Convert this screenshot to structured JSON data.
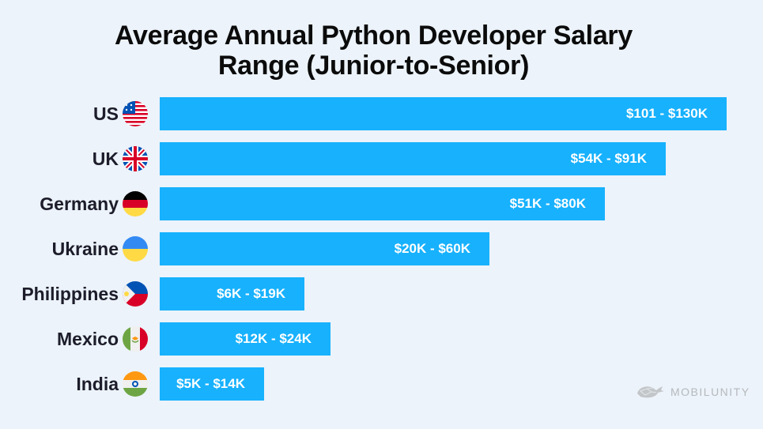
{
  "chart_data": {
    "type": "bar",
    "orientation": "horizontal",
    "title": "Average Annual Python Developer Salary Range (Junior-to-Senior)",
    "title_lines": [
      "Average Annual Python Developer Salary",
      "Range (Junior-to-Senior)"
    ],
    "categories": [
      "US",
      "UK",
      "Germany",
      "Ukraine",
      "Philippines",
      "Mexico",
      "India"
    ],
    "flags": [
      "us-flag-icon",
      "uk-flag-icon",
      "germany-flag-icon",
      "ukraine-flag-icon",
      "philippines-flag-icon",
      "mexico-flag-icon",
      "india-flag-icon"
    ],
    "ranges": [
      {
        "min": 101,
        "max": 130,
        "unit": "K USD"
      },
      {
        "min": 54,
        "max": 91,
        "unit": "K USD"
      },
      {
        "min": 51,
        "max": 80,
        "unit": "K USD"
      },
      {
        "min": 20,
        "max": 60,
        "unit": "K USD"
      },
      {
        "min": 6,
        "max": 19,
        "unit": "K USD"
      },
      {
        "min": 12,
        "max": 24,
        "unit": "K USD"
      },
      {
        "min": 5,
        "max": 14,
        "unit": "K USD"
      }
    ],
    "data_labels": [
      "$101 - $130K",
      "$54K - $91K",
      "$51K - $80K",
      "$20K - $60K",
      "$6K - $19K",
      "$12K - $24K",
      "$5K - $14K"
    ],
    "bar_color": "#17b1fd",
    "grid": false,
    "legend": "none"
  },
  "brand": {
    "name": "MOBILUNITY"
  }
}
